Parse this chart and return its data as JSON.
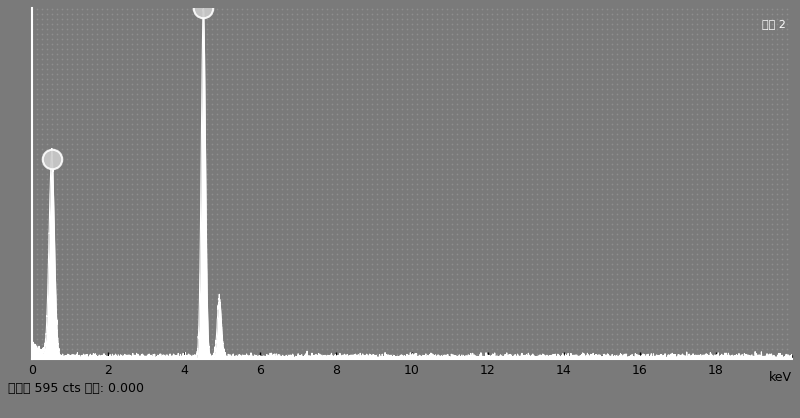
{
  "title": "谱图 2",
  "xlabel_right": "keV",
  "bottom_label": "满量程 595 cts 光标: 0.000",
  "xmin": 0,
  "xmax": 20,
  "xticks": [
    0,
    2,
    4,
    6,
    8,
    10,
    12,
    14,
    16,
    18
  ],
  "ymin": 0,
  "ymax": 595,
  "background_color": "#7a7a7a",
  "plot_bg_color": "#7a7a7a",
  "line_color": "#ffffff",
  "peak1_x": 0.52,
  "peak1_y": 340,
  "peak2_x": 4.51,
  "peak2_y": 595,
  "peak2b_x": 4.93,
  "peak2b_y": 100,
  "baseline_noise_amp": 6,
  "marker_size": 14,
  "dot_color_light": "#999999",
  "dot_color_dark": "#555555",
  "bottom_bg_color": "#aaaaaa",
  "bottom_text_color": "#000000",
  "axis_label_color": "#000000",
  "title_color": "#ffffff"
}
